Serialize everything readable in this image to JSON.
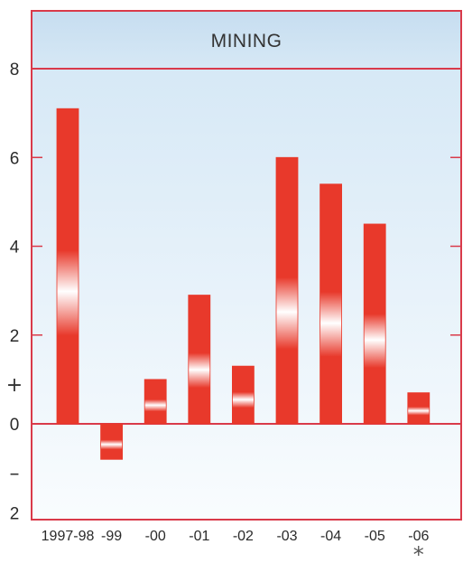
{
  "chart_data": {
    "type": "bar",
    "title": "MINING",
    "categories": [
      "1997-98",
      "-99",
      "-00",
      "-01",
      "-02",
      "-03",
      "-04",
      "-05",
      "-06"
    ],
    "values": [
      7.1,
      -0.8,
      1.0,
      2.9,
      1.3,
      6.0,
      5.4,
      4.5,
      0.7
    ],
    "ylim": [
      -2,
      8
    ],
    "y_ticks": [
      0,
      2,
      4,
      6,
      8
    ],
    "y_tick_labels": [
      "0",
      "2",
      "4",
      "6",
      "8"
    ],
    "y_bottom_label": "2",
    "positive_sign": "+",
    "negative_sign": "–",
    "footnote_marker": "*",
    "footnote_category": "-06",
    "xlabel": "",
    "ylabel": "",
    "grid": false,
    "colors": {
      "bar": "#e8392b",
      "bar_highlight": "#ffffff",
      "frame": "#d93a4a",
      "title_band_top": "#c6ddf0",
      "title_band_bottom": "#d6e8f5",
      "plot_top": "#d2e6f5",
      "plot_bottom": "#f9fcfe"
    }
  }
}
